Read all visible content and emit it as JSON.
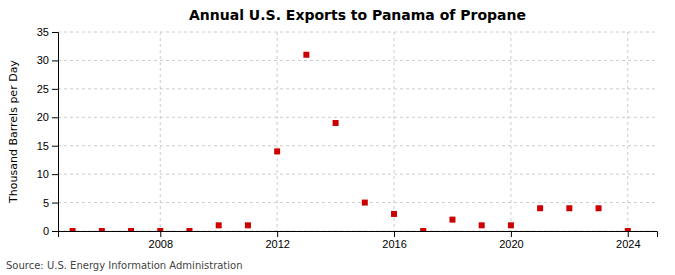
{
  "chart_data": {
    "type": "scatter",
    "title": "Annual U.S. Exports to Panama of Propane",
    "y_label": "Thousand Barrels per Day",
    "annotations": [
      "Source: U.S. Energy Information Administration"
    ],
    "x": [
      2005,
      2006,
      2007,
      2008,
      2009,
      2010,
      2011,
      2012,
      2013,
      2014,
      2015,
      2016,
      2017,
      2018,
      2019,
      2020,
      2021,
      2022,
      2023,
      2024
    ],
    "values": [
      0,
      0,
      0,
      0,
      0,
      1,
      1,
      14,
      31,
      19,
      5,
      3,
      0,
      2,
      1,
      1,
      4,
      4,
      4,
      0
    ],
    "color": "#cc0000",
    "marker": "square",
    "xlim": [
      2004.5,
      2025.0
    ],
    "xticks": [
      2008,
      2012,
      2016,
      2020,
      2024
    ],
    "ylim": [
      0,
      35
    ],
    "yticks": [
      0,
      5,
      10,
      15,
      20,
      25,
      30,
      35
    ],
    "grid": true
  }
}
